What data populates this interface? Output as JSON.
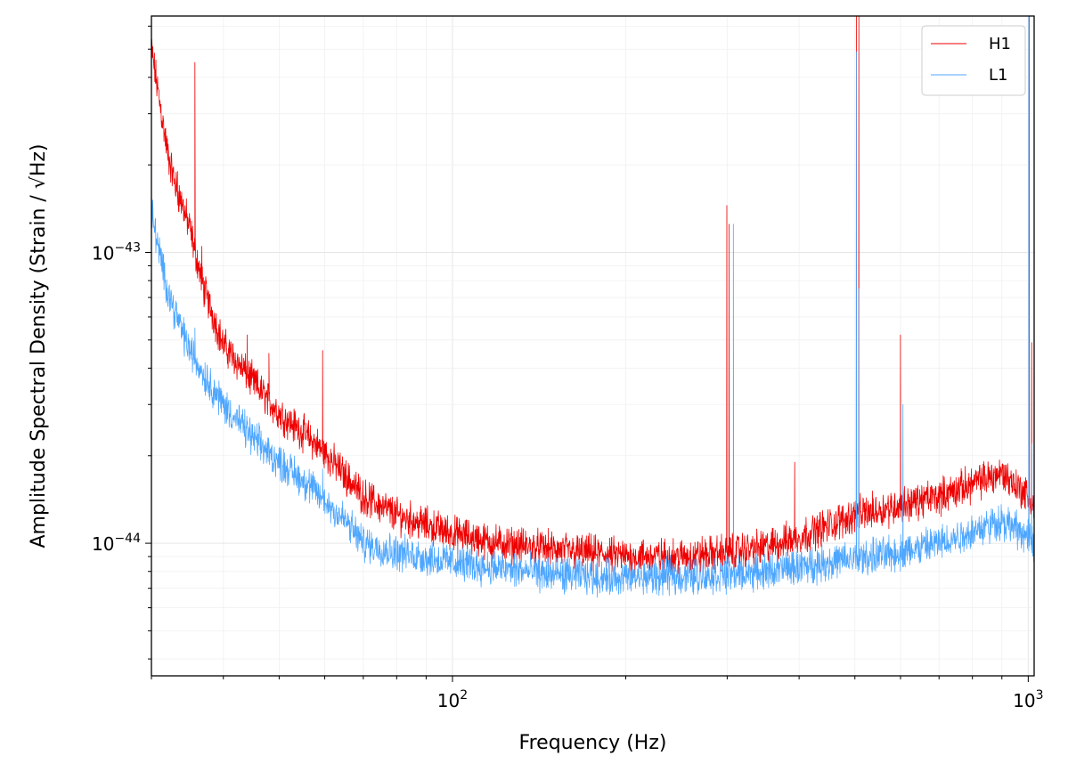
{
  "chart_data": {
    "type": "line",
    "xlabel": "Frequency (Hz)",
    "ylabel": "Amplitude Spectral Density (Strain / √Hz)",
    "xscale": "log",
    "yscale": "log",
    "xlim": [
      30,
      1024
    ],
    "ylim": [
      3.5e-45,
      6.5e-43
    ],
    "grid": true,
    "legend_position": "top-right",
    "x_major_ticks": [
      {
        "value": 100,
        "base": "10",
        "exp": "2"
      },
      {
        "value": 1000,
        "base": "10",
        "exp": "3"
      }
    ],
    "y_major_ticks": [
      {
        "value": 1e-44,
        "base": "10",
        "exp": "−44"
      },
      {
        "value": 1e-43,
        "base": "10",
        "exp": "−43"
      }
    ],
    "series": [
      {
        "name": "H1",
        "color": "#ee0000",
        "x": [
          30,
          31,
          32,
          33,
          34,
          35,
          37,
          40,
          45,
          50,
          55,
          60,
          70,
          80,
          100,
          120,
          150,
          200,
          250,
          300,
          350,
          400,
          450,
          500,
          600,
          700,
          800,
          900,
          1000,
          1024
        ],
        "y": [
          5e-43,
          3.3e-43,
          2.2e-43,
          1.7e-43,
          1.45e-43,
          1.2e-43,
          7.5e-44,
          4.8e-44,
          3.6e-44,
          2.8e-44,
          2.4e-44,
          2.05e-44,
          1.45e-44,
          1.25e-44,
          1.08e-44,
          1e-44,
          9.5e-45,
          9e-45,
          9e-45,
          9.3e-45,
          9.7e-45,
          1.05e-44,
          1.15e-44,
          1.25e-44,
          1.35e-44,
          1.45e-44,
          1.6e-44,
          1.75e-44,
          1.45e-44,
          1.3e-44
        ],
        "peaks": [
          {
            "x": 33.3,
            "y": 1.9e-43
          },
          {
            "x": 35.7,
            "y": 4.5e-43
          },
          {
            "x": 36.7,
            "y": 1.05e-43
          },
          {
            "x": 41.0,
            "y": 5e-44
          },
          {
            "x": 44.0,
            "y": 5.2e-44
          },
          {
            "x": 48.0,
            "y": 4.5e-44
          },
          {
            "x": 59.5,
            "y": 4.6e-44
          },
          {
            "x": 299.6,
            "y": 1.45e-43
          },
          {
            "x": 302.2,
            "y": 1.25e-43
          },
          {
            "x": 393.0,
            "y": 1.9e-44
          },
          {
            "x": 503.0,
            "y": 6.5e-43
          },
          {
            "x": 508.0,
            "y": 6.5e-43
          },
          {
            "x": 600.0,
            "y": 5.2e-44
          },
          {
            "x": 1004.0,
            "y": 6.5e-43
          },
          {
            "x": 1014.0,
            "y": 4.9e-44
          }
        ]
      },
      {
        "name": "L1",
        "color": "#4da6ff",
        "x": [
          30,
          31,
          32,
          33,
          34,
          35,
          37,
          40,
          45,
          50,
          55,
          60,
          65,
          70,
          80,
          100,
          120,
          150,
          200,
          250,
          300,
          350,
          400,
          450,
          500,
          600,
          700,
          800,
          900,
          1000,
          1024
        ],
        "y": [
          1.4e-43,
          9.8e-44,
          7.5e-44,
          6.2e-44,
          5.3e-44,
          4.6e-44,
          3.8e-44,
          3e-44,
          2.3e-44,
          1.9e-44,
          1.65e-44,
          1.4e-44,
          1.2e-44,
          1e-44,
          9.3e-45,
          8.6e-45,
          8.2e-45,
          7.8e-45,
          7.6e-45,
          7.7e-45,
          7.8e-45,
          8e-45,
          8.3e-45,
          8.6e-45,
          8.8e-45,
          9.3e-45,
          1e-44,
          1.1e-44,
          1.2e-44,
          1.05e-44,
          9.5e-45
        ],
        "peaks": [
          {
            "x": 33.3,
            "y": 6e-44
          },
          {
            "x": 35.7,
            "y": 5.5e-44
          },
          {
            "x": 59.5,
            "y": 1.8e-44
          },
          {
            "x": 307.5,
            "y": 1.25e-43
          },
          {
            "x": 503.0,
            "y": 4.9e-43
          },
          {
            "x": 508.0,
            "y": 7.5e-44
          },
          {
            "x": 606.0,
            "y": 3e-44
          },
          {
            "x": 1002.0,
            "y": 6.5e-43
          },
          {
            "x": 1014.0,
            "y": 2.2e-44
          }
        ]
      }
    ]
  }
}
